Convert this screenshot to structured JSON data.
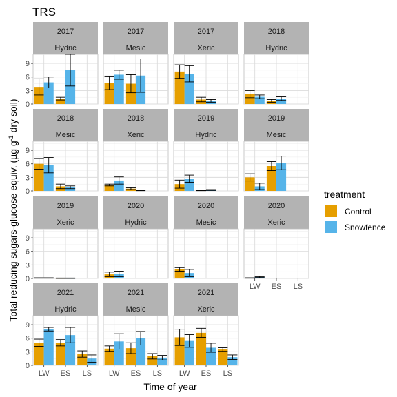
{
  "chart_data": {
    "type": "bar",
    "title": "TRS",
    "xlabel": "Time of year",
    "ylabel_main": "Total reducing sugars-glucose equiv. (µg g",
    "ylabel_sup": "-1",
    "ylabel_tail": " dry soil)",
    "categories": [
      "LW",
      "ES",
      "LS"
    ],
    "yticks": [
      "0",
      "3",
      "6",
      "9"
    ],
    "ylim": [
      0,
      11
    ],
    "grid": true,
    "legend": {
      "title": "treatment",
      "position": "right",
      "items": [
        {
          "label": "Control",
          "color": "#E69F00"
        },
        {
          "label": "Snowfence",
          "color": "#56B4E9"
        }
      ]
    },
    "panels": [
      {
        "year": "2017",
        "site": "Hydric",
        "control": [
          3.8,
          1.2,
          null
        ],
        "control_err": [
          1.8,
          0.3,
          null
        ],
        "snowfence": [
          4.8,
          7.5,
          null
        ],
        "snowfence_err": [
          1.2,
          3.5,
          null
        ]
      },
      {
        "year": "2017",
        "site": "Mesic",
        "control": [
          4.7,
          4.5,
          null
        ],
        "control_err": [
          1.5,
          2.0,
          null
        ],
        "snowfence": [
          6.5,
          6.3,
          null
        ],
        "snowfence_err": [
          1.0,
          3.7,
          null
        ]
      },
      {
        "year": "2017",
        "site": "Xeric",
        "control": [
          7.2,
          1.0,
          null
        ],
        "control_err": [
          1.5,
          0.5,
          null
        ],
        "snowfence": [
          6.7,
          0.7,
          null
        ],
        "snowfence_err": [
          1.8,
          0.3,
          null
        ]
      },
      {
        "year": "2018",
        "site": "Hydric",
        "control": [
          2.2,
          0.7,
          null
        ],
        "control_err": [
          0.8,
          0.3,
          null
        ],
        "snowfence": [
          1.6,
          1.2,
          null
        ],
        "snowfence_err": [
          0.4,
          0.4,
          null
        ]
      },
      {
        "year": "2018",
        "site": "Mesic",
        "control": [
          6.0,
          1.0,
          null
        ],
        "control_err": [
          1.2,
          0.5,
          null
        ],
        "snowfence": [
          5.7,
          0.8,
          null
        ],
        "snowfence_err": [
          1.7,
          0.3,
          null
        ]
      },
      {
        "year": "2018",
        "site": "Xeric",
        "control": [
          1.3,
          0.5,
          null
        ],
        "control_err": [
          0.2,
          0.2,
          null
        ],
        "snowfence": [
          2.3,
          0.1,
          null
        ],
        "snowfence_err": [
          0.8,
          0.05,
          null
        ]
      },
      {
        "year": "2019",
        "site": "Hydric",
        "control": [
          1.5,
          0.1,
          null
        ],
        "control_err": [
          0.9,
          0.05,
          null
        ],
        "snowfence": [
          2.7,
          0.2,
          null
        ],
        "snowfence_err": [
          0.8,
          0.1,
          null
        ]
      },
      {
        "year": "2019",
        "site": "Mesic",
        "control": [
          3.0,
          5.5,
          null
        ],
        "control_err": [
          0.8,
          1.0,
          null
        ],
        "snowfence": [
          1.0,
          6.2,
          null
        ],
        "snowfence_err": [
          0.7,
          1.5,
          null
        ]
      },
      {
        "year": "2019",
        "site": "Xeric",
        "control": [
          0.1,
          0.05,
          null
        ],
        "control_err": [
          0.05,
          0.05,
          null
        ],
        "snowfence": [
          0.1,
          0.05,
          null
        ],
        "snowfence_err": [
          0.05,
          0.05,
          null
        ]
      },
      {
        "year": "2020",
        "site": "Hydric",
        "control": [
          0.9,
          null,
          null
        ],
        "control_err": [
          0.5,
          null,
          null
        ],
        "snowfence": [
          1.0,
          null,
          null
        ],
        "snowfence_err": [
          0.6,
          null,
          null
        ]
      },
      {
        "year": "2020",
        "site": "Mesic",
        "control": [
          2.0,
          null,
          null
        ],
        "control_err": [
          0.4,
          null,
          null
        ],
        "snowfence": [
          1.2,
          null,
          null
        ],
        "snowfence_err": [
          0.8,
          null,
          null
        ]
      },
      {
        "year": "2020",
        "site": "Xeric",
        "control": [
          0.1,
          null,
          null
        ],
        "control_err": [
          0.05,
          null,
          null
        ],
        "snowfence": [
          0.3,
          null,
          null
        ],
        "snowfence_err": [
          0.1,
          null,
          null
        ]
      },
      {
        "year": "2021",
        "site": "Hydric",
        "control": [
          5.0,
          5.0,
          2.5
        ],
        "control_err": [
          0.8,
          0.7,
          0.7
        ],
        "snowfence": [
          8.0,
          6.7,
          1.5
        ],
        "snowfence_err": [
          0.4,
          1.7,
          0.8
        ]
      },
      {
        "year": "2021",
        "site": "Mesic",
        "control": [
          3.7,
          3.8,
          2.0
        ],
        "control_err": [
          0.6,
          1.2,
          0.6
        ],
        "snowfence": [
          5.3,
          6.0,
          1.7
        ],
        "snowfence_err": [
          1.7,
          1.5,
          0.5
        ]
      },
      {
        "year": "2021",
        "site": "Xeric",
        "control": [
          6.2,
          7.2,
          3.5
        ],
        "control_err": [
          1.8,
          1.0,
          0.4
        ],
        "snowfence": [
          5.4,
          3.9,
          1.8
        ],
        "snowfence_err": [
          1.4,
          1.0,
          0.5
        ]
      }
    ]
  }
}
